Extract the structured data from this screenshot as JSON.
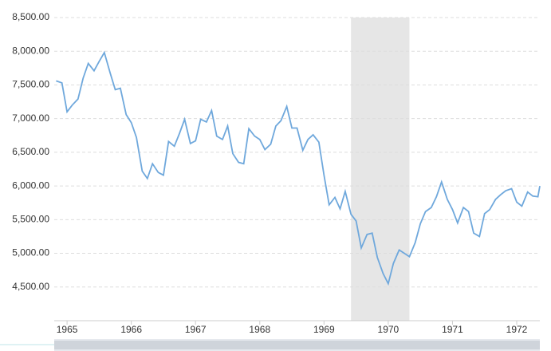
{
  "chart_data": {
    "type": "line",
    "x": [
      1964.83,
      1964.92,
      1965.0,
      1965.08,
      1965.17,
      1965.25,
      1965.33,
      1965.42,
      1965.5,
      1965.58,
      1965.67,
      1965.75,
      1965.83,
      1965.92,
      1966.0,
      1966.08,
      1966.17,
      1966.25,
      1966.33,
      1966.42,
      1966.5,
      1966.58,
      1966.67,
      1966.75,
      1966.83,
      1966.92,
      1967.0,
      1967.08,
      1967.17,
      1967.25,
      1967.33,
      1967.42,
      1967.5,
      1967.58,
      1967.67,
      1967.75,
      1967.83,
      1967.92,
      1968.0,
      1968.08,
      1968.17,
      1968.25,
      1968.33,
      1968.42,
      1968.5,
      1968.58,
      1968.67,
      1968.75,
      1968.83,
      1968.92,
      1969.0,
      1969.08,
      1969.17,
      1969.25,
      1969.33,
      1969.42,
      1969.5,
      1969.58,
      1969.67,
      1969.75,
      1969.83,
      1969.92,
      1970.0,
      1970.08,
      1970.17,
      1970.25,
      1970.33,
      1970.42,
      1970.5,
      1970.58,
      1970.67,
      1970.75,
      1970.83,
      1970.92,
      1971.0,
      1971.08,
      1971.17,
      1971.25,
      1971.33,
      1971.42,
      1971.5,
      1971.58,
      1971.67,
      1971.75,
      1971.83,
      1971.92,
      1972.0,
      1972.08,
      1972.17,
      1972.25,
      1972.33,
      1972.36
    ],
    "series": [
      {
        "color": "#6fa8dc",
        "values": [
          7560,
          7530,
          7100,
          7200,
          7290,
          7600,
          7820,
          7710,
          7850,
          7980,
          7680,
          7430,
          7450,
          7060,
          6940,
          6720,
          6220,
          6110,
          6330,
          6200,
          6160,
          6660,
          6590,
          6780,
          6990,
          6630,
          6670,
          6990,
          6950,
          7120,
          6740,
          6690,
          6890,
          6480,
          6350,
          6330,
          6850,
          6740,
          6690,
          6540,
          6620,
          6890,
          6970,
          7180,
          6860,
          6860,
          6530,
          6690,
          6760,
          6650,
          6160,
          5720,
          5830,
          5660,
          5920,
          5580,
          5480,
          5080,
          5280,
          5300,
          4940,
          4700,
          4550,
          4850,
          5050,
          5000,
          4950,
          5160,
          5440,
          5620,
          5680,
          5840,
          6060,
          5800,
          5650,
          5450,
          5680,
          5620,
          5300,
          5250,
          5590,
          5650,
          5800,
          5870,
          5930,
          5960,
          5760,
          5700,
          5910,
          5850,
          5840,
          6000
        ]
      }
    ],
    "shaded_range": [
      1969.42,
      1970.33
    ],
    "xlim": [
      1964.8,
      1972.36
    ],
    "xticks": [
      1965,
      1966,
      1967,
      1968,
      1969,
      1970,
      1971,
      1972
    ],
    "ylim": [
      4000,
      8500
    ],
    "yticks": [
      {
        "value": 4500,
        "label": "4,500.00"
      },
      {
        "value": 5000,
        "label": "5,000.00"
      },
      {
        "value": 5500,
        "label": "5,500.00"
      },
      {
        "value": 6000,
        "label": "6,000.00"
      },
      {
        "value": 6500,
        "label": "6,500.00"
      },
      {
        "value": 7000,
        "label": "7,000.00"
      },
      {
        "value": 7500,
        "label": "7,500.00"
      },
      {
        "value": 8000,
        "label": "8,000.00"
      },
      {
        "value": 8500,
        "label": "8,500.00"
      }
    ],
    "grid": true
  }
}
